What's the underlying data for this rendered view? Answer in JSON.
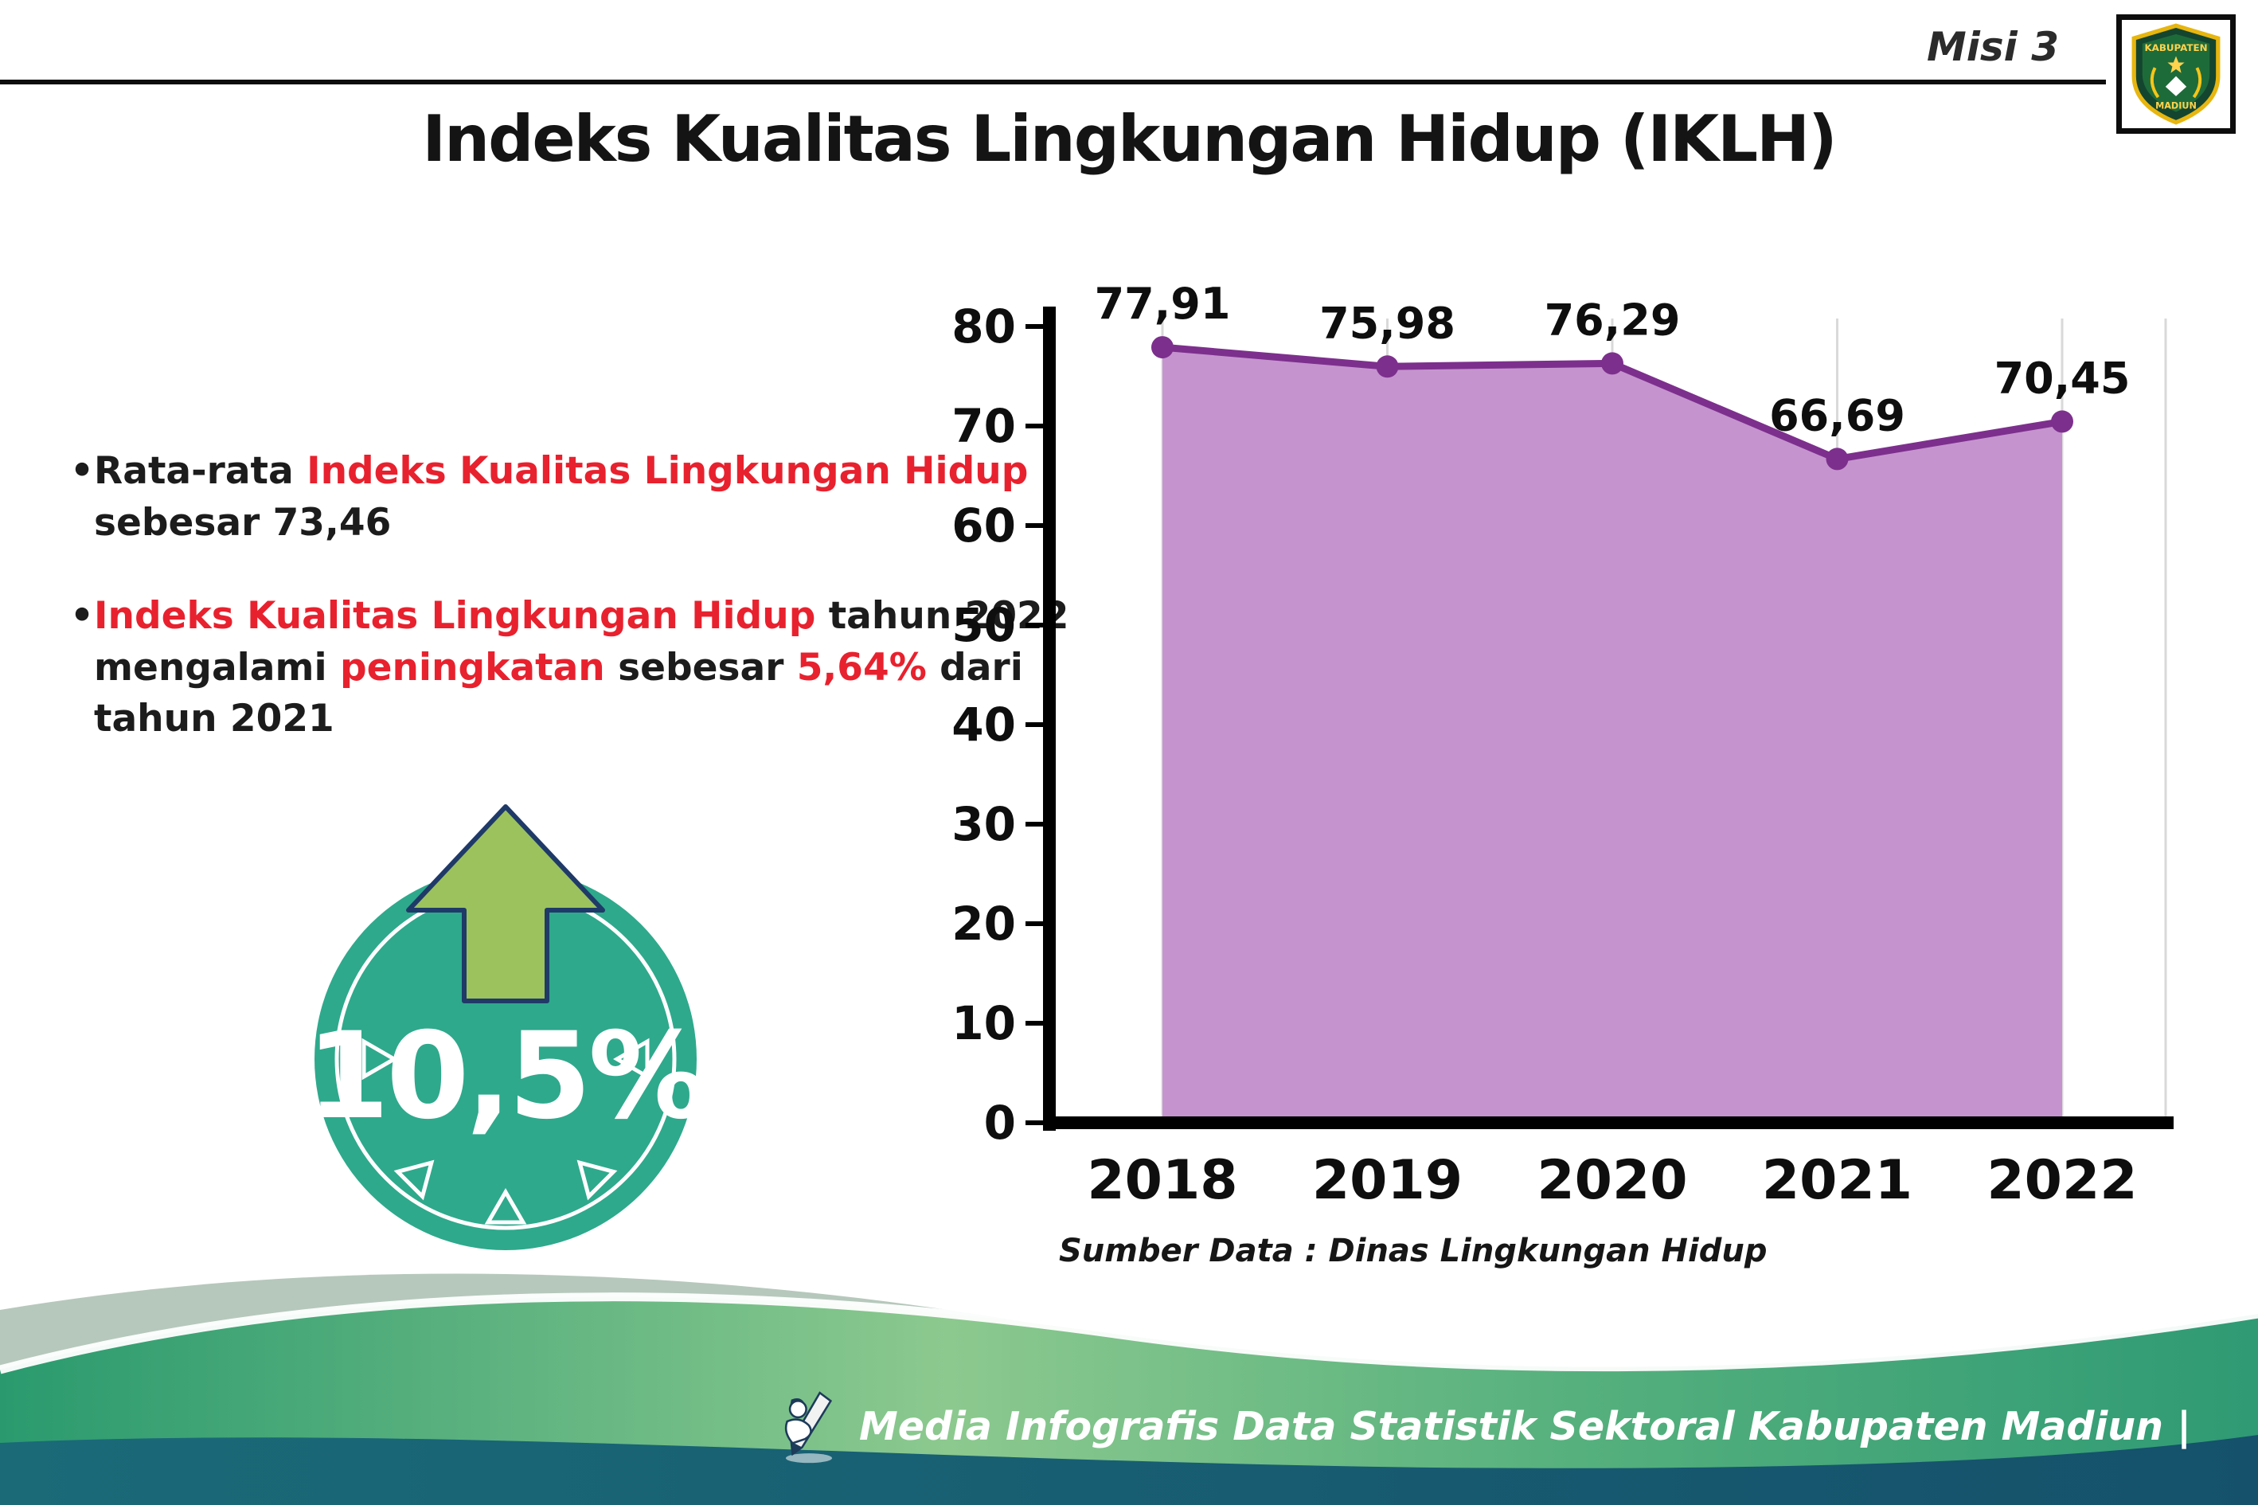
{
  "header": {
    "misi_label": "Misi 3",
    "title": "Indeks Kualitas Lingkungan Hidup (IKLH)",
    "logo": {
      "line1": "KABUPATEN",
      "line2": "MADIUN"
    }
  },
  "bullets": {
    "items": [
      {
        "lines": [
          [
            {
              "t": "•Rata-rata ",
              "c": "k"
            },
            {
              "t": "Indeks Kualitas Lingkungan Hidup",
              "c": "r"
            }
          ],
          [
            {
              "t": "sebesar 73,46",
              "c": "k"
            }
          ]
        ]
      },
      {
        "lines": [
          [
            {
              "t": "•",
              "c": "k"
            },
            {
              "t": "Indeks Kualitas Lingkungan Hidup",
              "c": "r"
            },
            {
              "t": " tahun 2022",
              "c": "k"
            }
          ],
          [
            {
              "t": "mengalami ",
              "c": "k"
            },
            {
              "t": "peningkatan",
              "c": "r"
            },
            {
              "t": " sebesar ",
              "c": "k"
            },
            {
              "t": "5,64%",
              "c": "r"
            },
            {
              "t": " dari",
              "c": "k"
            }
          ],
          [
            {
              "t": "tahun 2021",
              "c": "k"
            }
          ]
        ]
      }
    ]
  },
  "badge": {
    "value": "10,5%"
  },
  "chart_data": {
    "type": "area",
    "title": "",
    "categories": [
      "2018",
      "2019",
      "2020",
      "2021",
      "2022"
    ],
    "values": [
      77.91,
      75.98,
      76.29,
      66.69,
      70.45
    ],
    "value_labels": [
      "77,91",
      "75,98",
      "76,29",
      "66,69",
      "70,45"
    ],
    "ylim": [
      0,
      80
    ],
    "yticks": [
      0,
      10,
      20,
      30,
      40,
      50,
      60,
      70,
      80
    ],
    "grid": "vertical-light",
    "legend": "none",
    "line_color": "#7d2f8d",
    "fill_color": "#c594ce",
    "marker_color": "#7d2f8d",
    "axis_color": "#000000",
    "source_note": "Sumber Data : Dinas Lingkungan Hidup"
  },
  "footer": {
    "text": "Media Infografis Data Statistik Sektoral Kabupaten Madiun |"
  },
  "colors": {
    "accent_red": "#e8212e",
    "badge_teal": "#2ea98c",
    "arrow_green": "#9cc25e",
    "arrow_outline": "#1f3a68",
    "wave_green": "#2a9a6e",
    "wave_light_green": "#8cc98f",
    "wave_sage": "#b6c8bc",
    "wave_dark": "#15516b"
  }
}
